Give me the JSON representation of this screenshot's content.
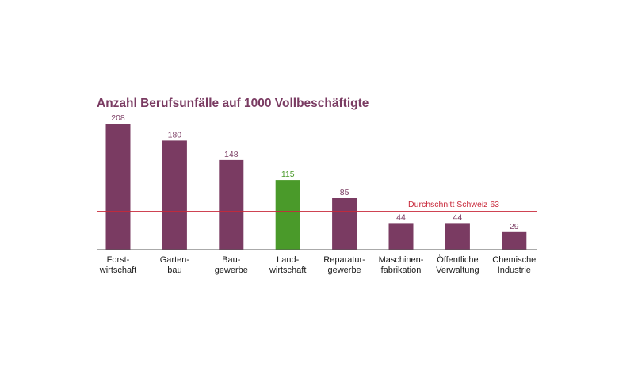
{
  "chart_data": {
    "type": "bar",
    "title": "Anzahl Berufsunfälle auf 1000 Vollbeschäftigte",
    "categories": [
      [
        "Forst-",
        "wirtschaft"
      ],
      [
        "Garten-",
        "bau"
      ],
      [
        "Bau-",
        "gewerbe"
      ],
      [
        "Land-",
        "wirtschaft"
      ],
      [
        "Reparatur-",
        "gewerbe"
      ],
      [
        "Maschinen-",
        "fabrikation"
      ],
      [
        "Öffentliche",
        "Verwaltung"
      ],
      [
        "Chemische",
        "Industrie"
      ]
    ],
    "values": [
      208,
      180,
      148,
      115,
      85,
      44,
      44,
      29
    ],
    "highlight_index": 3,
    "reference_line": {
      "label": "Durchschnitt Schweiz 63",
      "value": 63
    },
    "ylim": [
      0,
      208
    ],
    "colors": {
      "bar": "#7a3b62",
      "highlight": "#4a9a2a",
      "reference": "#c8283a",
      "title": "#7a3b62",
      "axis": "#555555"
    }
  }
}
